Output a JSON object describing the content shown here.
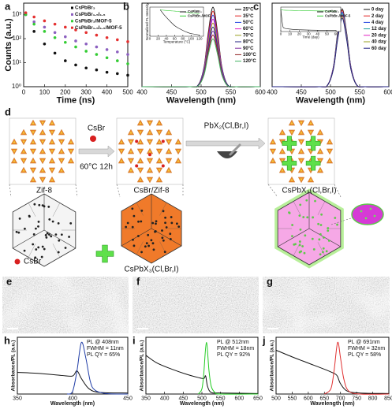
{
  "chart_data": [
    {
      "type": "scatter",
      "label": "a",
      "xlabel": "Time (ns)",
      "ylabel": "Counts (a.u.)",
      "log_y": true,
      "xlim": [
        0,
        500
      ],
      "ylim": [
        1,
        3000
      ],
      "xticks": [
        0,
        100,
        200,
        300,
        400,
        500
      ],
      "yticks": [
        {
          "value": 1,
          "label": "10⁰"
        },
        {
          "value": 10,
          "label": "10¹"
        },
        {
          "value": 100,
          "label": "10²"
        },
        {
          "value": 1000,
          "label": "10³"
        }
      ],
      "legend": "top-right",
      "series": [
        {
          "name": "CsPbBr₃",
          "color": "#111111",
          "x": [
            10,
            50,
            100,
            150,
            200,
            250,
            300,
            350,
            400,
            450,
            500
          ],
          "values": [
            1000,
            200,
            60,
            25,
            12,
            8,
            6,
            5,
            4,
            3.5,
            3
          ]
        },
        {
          "name": "CsPbBr₁.₅I₁.₅",
          "color": "#8b5fbf",
          "x": [
            10,
            50,
            100,
            150,
            200,
            250,
            300,
            350,
            400,
            450,
            500
          ],
          "values": [
            1000,
            500,
            300,
            180,
            120,
            80,
            60,
            45,
            35,
            28,
            22
          ]
        },
        {
          "name": "CsPbBr₃/MOF-5",
          "color": "#33cc33",
          "x": [
            10,
            50,
            100,
            150,
            200,
            250,
            300,
            350,
            400,
            450,
            500
          ],
          "values": [
            1000,
            400,
            200,
            110,
            70,
            45,
            30,
            22,
            16,
            12,
            9
          ]
        },
        {
          "name": "CsPbBr₁.₅I₁.₅/MOF-5",
          "color": "#e53030",
          "x": [
            10,
            50,
            100,
            150,
            200,
            250,
            300,
            350,
            400,
            450,
            500
          ],
          "values": [
            1200,
            800,
            550,
            400,
            300,
            230,
            180,
            140,
            110,
            90,
            75
          ]
        }
      ]
    },
    {
      "type": "line",
      "label": "b",
      "xlabel": "Wavelength (nm)",
      "xlim": [
        400,
        600
      ],
      "ylim": [
        0,
        1.05
      ],
      "xticks": [
        400,
        450,
        500,
        550,
        600
      ],
      "legend": "right",
      "series": [
        {
          "name": "25°C",
          "color": "#111111",
          "x": [
            400,
            480,
            495,
            505,
            512,
            520,
            528,
            535,
            545,
            560,
            600
          ],
          "values": [
            0,
            0,
            0.02,
            0.25,
            0.67,
            1,
            0.67,
            0.25,
            0.02,
            0,
            0
          ]
        },
        {
          "name": "35°C",
          "color": "#e02020",
          "x": [
            400,
            480,
            495,
            505,
            512,
            520,
            528,
            535,
            545,
            560,
            600
          ],
          "values": [
            0,
            0,
            0.02,
            0.24,
            0.64,
            0.95,
            0.64,
            0.24,
            0.02,
            0,
            0
          ]
        },
        {
          "name": "50°C",
          "color": "#2040e0",
          "x": [
            400,
            480,
            495,
            505,
            512,
            520,
            528,
            535,
            545,
            560,
            600
          ],
          "values": [
            0,
            0,
            0.02,
            0.23,
            0.6,
            0.9,
            0.6,
            0.23,
            0.02,
            0,
            0
          ]
        },
        {
          "name": "60°C",
          "color": "#e020c0",
          "x": [
            400,
            480,
            495,
            505,
            512,
            520,
            528,
            535,
            545,
            560,
            600
          ],
          "values": [
            0,
            0,
            0.02,
            0.21,
            0.57,
            0.85,
            0.57,
            0.21,
            0.02,
            0,
            0
          ]
        },
        {
          "name": "70°C",
          "color": "#9aa020",
          "x": [
            400,
            480,
            495,
            505,
            512,
            520,
            528,
            535,
            545,
            560,
            600
          ],
          "values": [
            0,
            0,
            0.02,
            0.2,
            0.54,
            0.8,
            0.54,
            0.2,
            0.02,
            0,
            0
          ]
        },
        {
          "name": "80°C",
          "color": "#202080",
          "x": [
            400,
            480,
            495,
            505,
            512,
            520,
            528,
            535,
            545,
            560,
            600
          ],
          "values": [
            0,
            0,
            0.02,
            0.19,
            0.5,
            0.75,
            0.5,
            0.19,
            0.02,
            0,
            0
          ]
        },
        {
          "name": "90°C",
          "color": "#8030a0",
          "x": [
            400,
            480,
            495,
            505,
            512,
            520,
            528,
            535,
            545,
            560,
            600
          ],
          "values": [
            0,
            0,
            0.01,
            0.18,
            0.47,
            0.7,
            0.47,
            0.18,
            0.01,
            0,
            0
          ]
        },
        {
          "name": "100°C",
          "color": "#902020",
          "x": [
            400,
            480,
            495,
            505,
            512,
            520,
            528,
            535,
            545,
            560,
            600
          ],
          "values": [
            0,
            0,
            0.01,
            0.16,
            0.44,
            0.65,
            0.44,
            0.16,
            0.01,
            0,
            0
          ]
        },
        {
          "name": "120°C",
          "color": "#40b060",
          "x": [
            400,
            480,
            495,
            505,
            512,
            520,
            528,
            535,
            545,
            560,
            600
          ],
          "values": [
            0,
            0,
            0.01,
            0.15,
            0.4,
            0.6,
            0.4,
            0.15,
            0.01,
            0,
            0
          ]
        }
      ],
      "inset": {
        "type": "line",
        "xlabel": "Temperature (°C)",
        "ylabel": "Normalized PL Intensity",
        "xlim": [
          0,
          130
        ],
        "ylim": [
          0,
          1.1
        ],
        "xticks": [
          0,
          20,
          40,
          60,
          80,
          100,
          120
        ],
        "legend": "top-right",
        "series": [
          {
            "name": "CsPbBr₃",
            "color": "#111111",
            "x": [
              25,
              35,
              50,
              60,
              70,
              80,
              90,
              100,
              120
            ],
            "values": [
              1,
              0.8,
              0.55,
              0.4,
              0.3,
              0.22,
              0.15,
              0.1,
              0.05
            ]
          },
          {
            "name": "CsPbBr₃/MOF",
            "color": "#33cc33",
            "x": [
              25,
              35,
              50,
              60,
              70,
              80,
              90,
              100,
              120
            ],
            "values": [
              1,
              0.98,
              0.96,
              0.95,
              0.93,
              0.92,
              0.9,
              0.88,
              0.85
            ]
          }
        ]
      }
    },
    {
      "type": "line",
      "label": "c",
      "xlabel": "Wavelength (nm)",
      "xlim": [
        400,
        600
      ],
      "ylim": [
        0,
        1.05
      ],
      "xticks": [
        400,
        450,
        500,
        550,
        600
      ],
      "legend": "right",
      "series": [
        {
          "name": "0 day",
          "color": "#111111",
          "x": [
            400,
            480,
            495,
            505,
            512,
            520,
            528,
            535,
            545,
            560,
            600
          ],
          "values": [
            0,
            0,
            0.02,
            0.25,
            0.66,
            0.98,
            0.66,
            0.25,
            0.02,
            0,
            0
          ]
        },
        {
          "name": "2 day",
          "color": "#e02020",
          "x": [
            400,
            480,
            495,
            505,
            512,
            520,
            528,
            535,
            545,
            560,
            600
          ],
          "values": [
            0,
            0,
            0.02,
            0.24,
            0.64,
            0.96,
            0.64,
            0.24,
            0.02,
            0,
            0
          ]
        },
        {
          "name": "4 day",
          "color": "#2040e0",
          "x": [
            400,
            480,
            495,
            505,
            512,
            520,
            528,
            535,
            545,
            560,
            600
          ],
          "values": [
            0,
            0,
            0.02,
            0.24,
            0.63,
            0.94,
            0.63,
            0.24,
            0.02,
            0,
            0
          ]
        },
        {
          "name": "12 day",
          "color": "#20a0a0",
          "x": [
            400,
            480,
            495,
            505,
            512,
            520,
            528,
            535,
            545,
            560,
            600
          ],
          "values": [
            0,
            0,
            0.02,
            0.23,
            0.62,
            0.92,
            0.62,
            0.23,
            0.02,
            0,
            0
          ]
        },
        {
          "name": "20 day",
          "color": "#e020c0",
          "x": [
            400,
            480,
            495,
            505,
            512,
            520,
            528,
            535,
            545,
            560,
            600
          ],
          "values": [
            0,
            0,
            0.02,
            0.23,
            0.6,
            0.9,
            0.6,
            0.23,
            0.02,
            0,
            0
          ]
        },
        {
          "name": "40 day",
          "color": "#9aa020",
          "x": [
            400,
            480,
            495,
            505,
            512,
            520,
            528,
            535,
            545,
            560,
            600
          ],
          "values": [
            0,
            0,
            0.02,
            0.22,
            0.59,
            0.88,
            0.59,
            0.22,
            0.02,
            0,
            0
          ]
        },
        {
          "name": "60 day",
          "color": "#202080",
          "x": [
            400,
            480,
            495,
            505,
            512,
            520,
            528,
            535,
            545,
            560,
            600
          ],
          "values": [
            0,
            0,
            0.02,
            0.22,
            0.58,
            0.86,
            0.58,
            0.22,
            0.02,
            0,
            0
          ]
        }
      ],
      "inset": {
        "type": "line",
        "xlabel": "Time (day)",
        "xlim": [
          0,
          65
        ],
        "ylim": [
          0,
          1.1
        ],
        "xticks": [
          0,
          10,
          20,
          30,
          40,
          50,
          60
        ],
        "legend": "top-right",
        "series": [
          {
            "name": "CsPbBr₃",
            "color": "#111111",
            "x": [
              0,
              2,
              4,
              12,
              20,
              40,
              60
            ],
            "values": [
              1,
              0.3,
              0.15,
              0.1,
              0.08,
              0.06,
              0.05
            ]
          },
          {
            "name": "CsPbBr₃/MOF-5",
            "color": "#33cc33",
            "x": [
              0,
              2,
              4,
              12,
              20,
              40,
              60
            ],
            "values": [
              1,
              0.97,
              0.96,
              0.95,
              0.94,
              0.93,
              0.92
            ]
          }
        ]
      }
    },
    {
      "type": "line",
      "label": "h",
      "xlabel": "Wavelength (nm)",
      "ylabel": "Absorbance/PL (a.u.)",
      "xlim": [
        350,
        450
      ],
      "ylim": [
        0,
        1.1
      ],
      "xticks": [
        350,
        400,
        450
      ],
      "annotations": [
        "PL @ 408nm",
        "FWHM = 11nm",
        "PL QY = 65%"
      ],
      "series": [
        {
          "color": "#111111",
          "x": [
            350,
            370,
            390,
            400,
            404,
            408,
            415,
            425,
            450
          ],
          "values": [
            0.42,
            0.4,
            0.36,
            0.35,
            0.45,
            0.3,
            0.1,
            0.03,
            0.02
          ]
        },
        {
          "color": "#1f3ca6",
          "x": [
            395,
            400,
            404,
            408,
            412,
            416,
            420,
            430,
            450
          ],
          "values": [
            0,
            0.05,
            0.45,
            1,
            0.7,
            0.25,
            0.08,
            0.01,
            0
          ]
        }
      ]
    },
    {
      "type": "line",
      "label": "i",
      "xlabel": "Wavelength (nm)",
      "ylabel": "Absorbance/PL (a.u.)",
      "xlim": [
        350,
        650
      ],
      "ylim": [
        0,
        1.1
      ],
      "xticks": [
        350,
        400,
        450,
        500,
        550,
        600,
        650
      ],
      "annotations": [
        "PL @ 512nm",
        "FWHM = 18nm",
        "PL QY = 92%"
      ],
      "series": [
        {
          "color": "#111111",
          "x": [
            350,
            380,
            420,
            460,
            490,
            505,
            510,
            515,
            525,
            550,
            650
          ],
          "values": [
            0.75,
            0.6,
            0.48,
            0.38,
            0.32,
            0.3,
            0.35,
            0.15,
            0.03,
            0.02,
            0.01
          ]
        },
        {
          "color": "#22cc22",
          "x": [
            490,
            500,
            505,
            512,
            519,
            525,
            535,
            550,
            650
          ],
          "values": [
            0,
            0.1,
            0.4,
            1,
            0.45,
            0.15,
            0.03,
            0,
            0
          ]
        }
      ]
    },
    {
      "type": "line",
      "label": "j",
      "xlabel": "Wavelength (nm)",
      "ylabel": "Absorbance/PL (a.u.)",
      "xlim": [
        500,
        850
      ],
      "ylim": [
        0,
        1.1
      ],
      "xticks": [
        500,
        550,
        600,
        650,
        700,
        750,
        800,
        850
      ],
      "annotations": [
        "PL @ 691nm",
        "FWHM = 32nm",
        "PL QY = 58%"
      ],
      "series": [
        {
          "color": "#111111",
          "x": [
            500,
            550,
            600,
            650,
            680,
            690,
            700,
            720,
            760,
            850
          ],
          "values": [
            0.85,
            0.72,
            0.6,
            0.48,
            0.4,
            0.35,
            0.2,
            0.06,
            0.02,
            0.01
          ]
        },
        {
          "color": "#e03030",
          "x": [
            650,
            670,
            680,
            691,
            700,
            710,
            725,
            760,
            850
          ],
          "values": [
            0,
            0.1,
            0.45,
            1,
            0.7,
            0.3,
            0.06,
            0,
            0
          ]
        }
      ]
    }
  ],
  "diagram": {
    "label": "d",
    "reagent": "CsBr",
    "conditions": "60°C   12h",
    "reagent2": "PbX₂(Cl,Br,I)",
    "stages": [
      "Zif-8",
      "CsBr/Zif-8",
      "CsPbX₃(Cl,Br,I)"
    ],
    "legend": [
      "CsBr",
      "CsPbX₃(Cl,Br,I)"
    ]
  },
  "images": [
    {
      "label": "e"
    },
    {
      "label": "f"
    },
    {
      "label": "g"
    }
  ]
}
